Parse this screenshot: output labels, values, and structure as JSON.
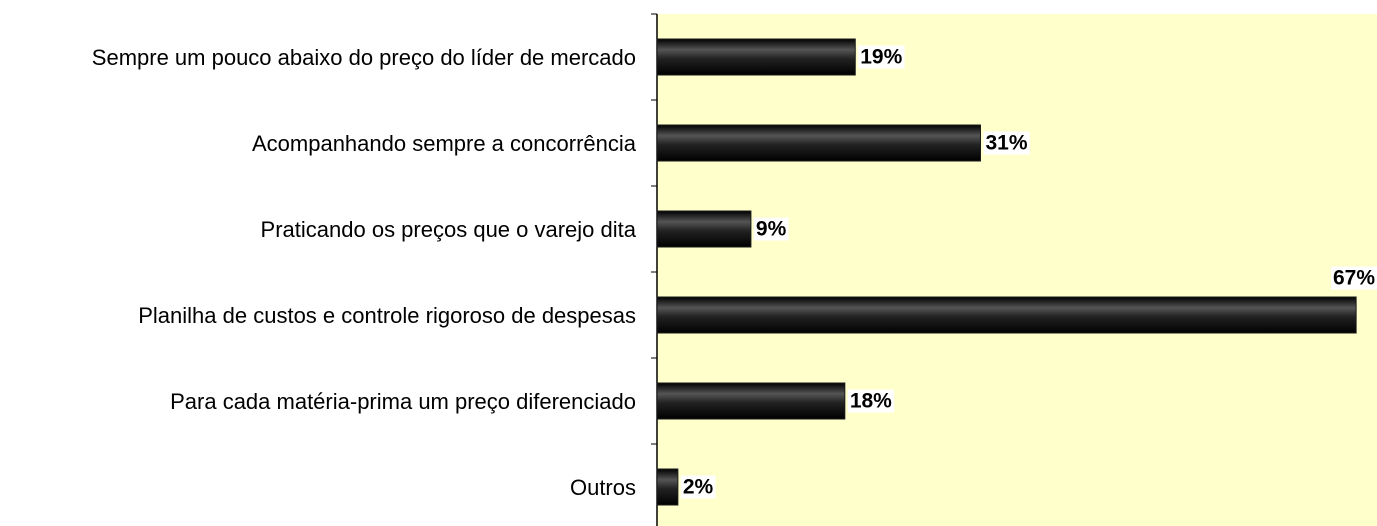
{
  "chart_data": {
    "type": "bar",
    "orientation": "horizontal",
    "categories": [
      "Sempre um pouco abaixo do preço do líder de mercado",
      "Acompanhando sempre a concorrência",
      "Praticando os preços que o varejo dita",
      "Planilha de custos e controle rigoroso de despesas",
      "Para cada matéria-prima um preço diferenciado",
      "Outros"
    ],
    "values": [
      19,
      31,
      9,
      67,
      18,
      2
    ],
    "value_labels": [
      "19%",
      "31%",
      "9%",
      "67%",
      "18%",
      "2%"
    ],
    "color": "#1a1a1a",
    "xlim": [
      0,
      69
    ]
  }
}
